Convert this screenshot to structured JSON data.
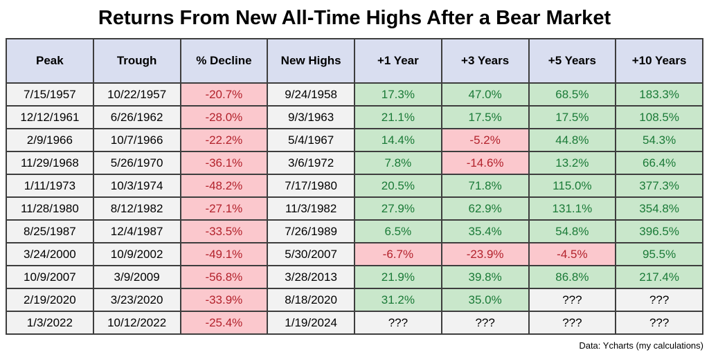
{
  "title": "Returns From New All-Time Highs After a Bear Market",
  "footer": "Data: Ycharts (my calculations)",
  "unknown_label": "???",
  "colors": {
    "header_bg": "#d9def0",
    "date_bg": "#f2f2f2",
    "positive_bg": "#c9e7cb",
    "positive_text": "#1a7a37",
    "negative_bg": "#fbc8cd",
    "negative_text": "#b3222c",
    "border": "#3d3d3d"
  },
  "chart_data": {
    "type": "table",
    "title": "Returns From New All-Time Highs After a Bear Market",
    "columns": [
      "Peak",
      "Trough",
      "% Decline",
      "New Highs",
      "+1 Year",
      "+3 Years",
      "+5 Years",
      "+10 Years"
    ],
    "rows": [
      [
        "7/15/1957",
        "10/22/1957",
        "-20.7%",
        "9/24/1958",
        "17.3%",
        "47.0%",
        "68.5%",
        "183.3%"
      ],
      [
        "12/12/1961",
        "6/26/1962",
        "-28.0%",
        "9/3/1963",
        "21.1%",
        "17.5%",
        "17.5%",
        "108.5%"
      ],
      [
        "2/9/1966",
        "10/7/1966",
        "-22.2%",
        "5/4/1967",
        "14.4%",
        "-5.2%",
        "44.8%",
        "54.3%"
      ],
      [
        "11/29/1968",
        "5/26/1970",
        "-36.1%",
        "3/6/1972",
        "7.8%",
        "-14.6%",
        "13.2%",
        "66.4%"
      ],
      [
        "1/11/1973",
        "10/3/1974",
        "-48.2%",
        "7/17/1980",
        "20.5%",
        "71.8%",
        "115.0%",
        "377.3%"
      ],
      [
        "11/28/1980",
        "8/12/1982",
        "-27.1%",
        "11/3/1982",
        "27.9%",
        "62.9%",
        "131.1%",
        "354.8%"
      ],
      [
        "8/25/1987",
        "12/4/1987",
        "-33.5%",
        "7/26/1989",
        "6.5%",
        "35.4%",
        "54.8%",
        "396.5%"
      ],
      [
        "3/24/2000",
        "10/9/2002",
        "-49.1%",
        "5/30/2007",
        "-6.7%",
        "-23.9%",
        "-4.5%",
        "95.5%"
      ],
      [
        "10/9/2007",
        "3/9/2009",
        "-56.8%",
        "3/28/2013",
        "21.9%",
        "39.8%",
        "86.8%",
        "217.4%"
      ],
      [
        "2/19/2020",
        "3/23/2020",
        "-33.9%",
        "8/18/2020",
        "31.2%",
        "35.0%",
        "???",
        "???"
      ],
      [
        "1/3/2022",
        "10/12/2022",
        "-25.4%",
        "1/19/2024",
        "???",
        "???",
        "???",
        "???"
      ]
    ],
    "legend": "pink background = negative return, green background = positive return, gray = date or not yet known",
    "source": "Data: Ycharts (my calculations)"
  }
}
